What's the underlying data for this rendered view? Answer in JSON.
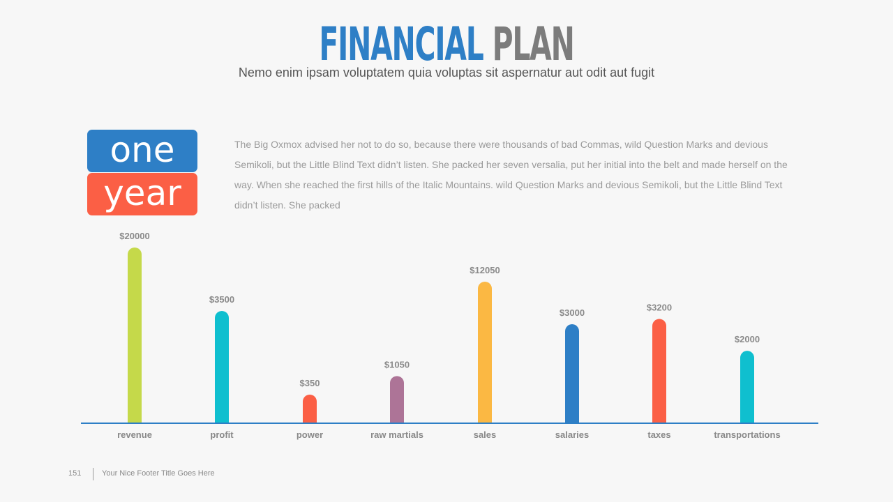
{
  "header": {
    "title_part1": "FINANCIAL",
    "title_part2": "PLAN",
    "subtitle": "Nemo enim ipsam voluptatem quia voluptas sit aspernatur aut odit aut fugit"
  },
  "badge": {
    "line1": "one",
    "line2": "year"
  },
  "body_text": "The Big Oxmox advised her not to do so, because there were thousands of bad Commas, wild Question Marks and devious Semikoli, but the Little Blind Text didn’t listen. She packed her seven versalia, put her initial into the belt and made herself on the way. When she reached the first hills of the Italic Mountains. wild Question Marks and devious Semikoli, but the Little Blind Text didn’t listen. She packed",
  "chart_data": {
    "type": "bar",
    "categories": [
      "revenue",
      "profit",
      "power",
      "raw martials",
      "sales",
      "salaries",
      "taxes",
      "transportations"
    ],
    "values": [
      20000,
      3500,
      350,
      1050,
      12050,
      3000,
      3200,
      2000
    ],
    "value_labels": [
      "$20000",
      "$3500",
      "$350",
      "$1050",
      "$12050",
      "$3000",
      "$3200",
      "$2000"
    ],
    "colors": [
      "#c5d94a",
      "#0fbfcf",
      "#fb5f45",
      "#ad7497",
      "#fbb843",
      "#2e7fc6",
      "#fb5f45",
      "#0fbfcf"
    ],
    "title": "",
    "xlabel": "",
    "ylabel": "",
    "grid": false,
    "legend": "none"
  },
  "footer": {
    "page_number": "151",
    "title": "Your Nice Footer Title Goes Here"
  }
}
